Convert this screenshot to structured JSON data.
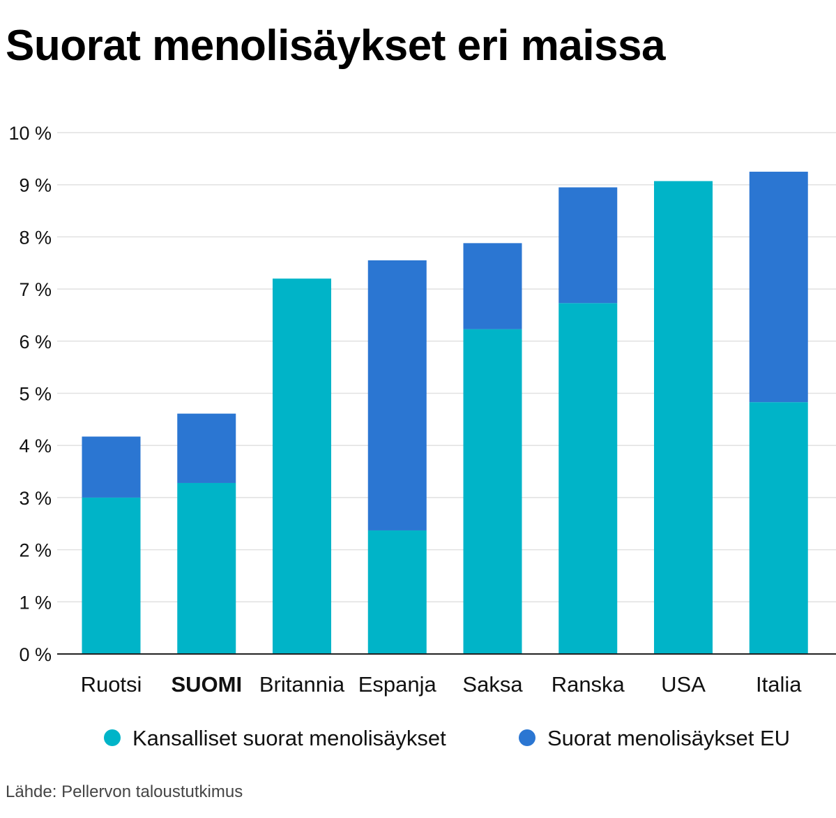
{
  "title": "Suorat menolisäykset eri maissa",
  "source": "Lähde: Pellervon taloustutkimus",
  "colors": {
    "national": "#00b4c8",
    "eu": "#2b76d2"
  },
  "chart_data": {
    "type": "bar",
    "stacked": true,
    "categories": [
      "Ruotsi",
      "SUOMI",
      "Britannia",
      "Espanja",
      "Saksa",
      "Ranska",
      "USA",
      "Italia"
    ],
    "highlight_category": "SUOMI",
    "series": [
      {
        "name": "Kansalliset suorat menolisäykset",
        "color": "#00b4c8",
        "values": [
          3.0,
          3.28,
          7.2,
          2.37,
          6.23,
          6.73,
          9.07,
          4.83
        ]
      },
      {
        "name": "Suorat menolisäykset EU",
        "color": "#2b76d2",
        "values": [
          1.17,
          1.33,
          0.0,
          5.18,
          1.65,
          2.22,
          0.0,
          4.42
        ]
      }
    ],
    "ylim": [
      0,
      10
    ],
    "yticks": [
      0,
      1,
      2,
      3,
      4,
      5,
      6,
      7,
      8,
      9,
      10
    ],
    "ytick_suffix": " %",
    "grid": true,
    "legend_position": "bottom",
    "xlabel": "",
    "ylabel": ""
  }
}
